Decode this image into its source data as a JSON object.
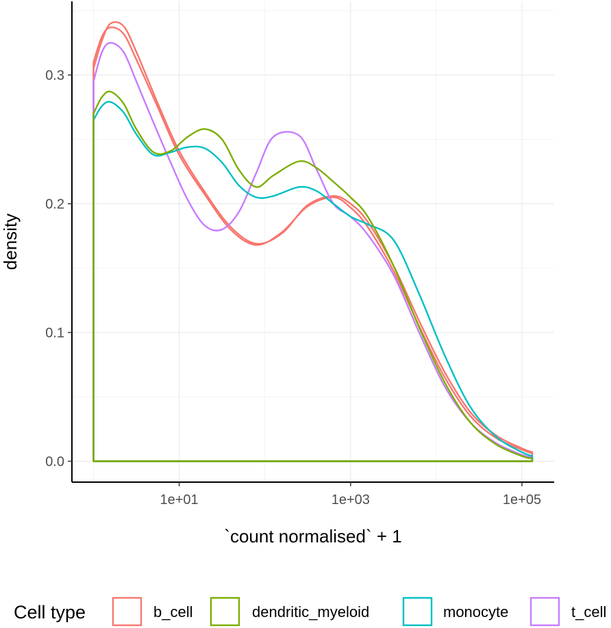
{
  "chart_data": {
    "type": "line",
    "subtype": "density",
    "xlabel": "`count normalised` + 1",
    "ylabel": "density",
    "x_scale": "log10",
    "xlim_log10": [
      -0.15,
      5.35
    ],
    "ylim": [
      -0.017,
      0.357
    ],
    "x_ticks": [
      {
        "value_log10": 1,
        "label": "1e+01"
      },
      {
        "value_log10": 3,
        "label": "1e+03"
      },
      {
        "value_log10": 5,
        "label": "1e+05"
      }
    ],
    "y_ticks": [
      {
        "value": 0.0,
        "label": "0.0"
      },
      {
        "value": 0.1,
        "label": "0.1"
      },
      {
        "value": 0.2,
        "label": "0.2"
      },
      {
        "value": 0.3,
        "label": "0.3"
      }
    ],
    "grid": true,
    "legend": {
      "title": "Cell type",
      "position": "bottom"
    },
    "series": [
      {
        "name": "b_cell",
        "color": "#F8766D",
        "x_log10": [
          0,
          0.1,
          0.2,
          0.35,
          0.5,
          0.75,
          1.0,
          1.3,
          1.6,
          1.9,
          2.2,
          2.5,
          2.8,
          3.0,
          3.2,
          3.5,
          3.8,
          4.1,
          4.4,
          4.7,
          5.0,
          5.12
        ],
        "y": [
          0.31,
          0.33,
          0.337,
          0.332,
          0.312,
          0.275,
          0.238,
          0.207,
          0.18,
          0.168,
          0.178,
          0.198,
          0.205,
          0.197,
          0.182,
          0.148,
          0.105,
          0.065,
          0.035,
          0.018,
          0.009,
          0.006
        ]
      },
      {
        "name": "b_cell",
        "color": "#F8766D",
        "x_log10": [
          0,
          0.1,
          0.2,
          0.35,
          0.5,
          0.75,
          1.0,
          1.3,
          1.6,
          1.9,
          2.2,
          2.5,
          2.8,
          3.0,
          3.2,
          3.5,
          3.8,
          4.1,
          4.4,
          4.7,
          5.0,
          5.12
        ],
        "y": [
          0.305,
          0.327,
          0.34,
          0.338,
          0.318,
          0.278,
          0.241,
          0.209,
          0.182,
          0.169,
          0.177,
          0.199,
          0.206,
          0.2,
          0.186,
          0.152,
          0.109,
          0.069,
          0.038,
          0.02,
          0.01,
          0.007
        ]
      },
      {
        "name": "dendritic_myeloid",
        "color": "#7CAE00",
        "x_log10": [
          0,
          0.1,
          0.2,
          0.35,
          0.5,
          0.7,
          0.9,
          1.1,
          1.3,
          1.5,
          1.7,
          1.9,
          2.1,
          2.4,
          2.6,
          2.8,
          3.0,
          3.2,
          3.5,
          3.8,
          4.1,
          4.4,
          4.7,
          5.0,
          5.12
        ],
        "y": [
          0.27,
          0.283,
          0.287,
          0.278,
          0.258,
          0.24,
          0.241,
          0.252,
          0.258,
          0.25,
          0.226,
          0.213,
          0.222,
          0.233,
          0.228,
          0.217,
          0.205,
          0.19,
          0.152,
          0.104,
          0.061,
          0.03,
          0.013,
          0.004,
          0.002
        ]
      },
      {
        "name": "monocyte",
        "color": "#00BFC4",
        "x_log10": [
          0,
          0.1,
          0.2,
          0.35,
          0.5,
          0.7,
          0.9,
          1.1,
          1.3,
          1.5,
          1.7,
          1.9,
          2.1,
          2.4,
          2.6,
          2.8,
          3.0,
          3.2,
          3.5,
          3.8,
          4.1,
          4.4,
          4.7,
          5.0,
          5.12
        ],
        "y": [
          0.265,
          0.276,
          0.279,
          0.271,
          0.254,
          0.238,
          0.24,
          0.244,
          0.243,
          0.232,
          0.214,
          0.205,
          0.206,
          0.213,
          0.21,
          0.2,
          0.19,
          0.184,
          0.172,
          0.13,
          0.082,
          0.042,
          0.019,
          0.007,
          0.004
        ]
      },
      {
        "name": "t_cell",
        "color": "#C77CFF",
        "x_log10": [
          0,
          0.1,
          0.2,
          0.35,
          0.5,
          0.7,
          0.9,
          1.1,
          1.3,
          1.5,
          1.7,
          1.9,
          2.1,
          2.4,
          2.6,
          2.8,
          3.0,
          3.2,
          3.5,
          3.8,
          4.1,
          4.4,
          4.7,
          5.0,
          5.12
        ],
        "y": [
          0.295,
          0.318,
          0.325,
          0.318,
          0.295,
          0.263,
          0.232,
          0.203,
          0.183,
          0.18,
          0.194,
          0.224,
          0.252,
          0.253,
          0.227,
          0.2,
          0.19,
          0.176,
          0.145,
          0.1,
          0.058,
          0.03,
          0.014,
          0.005,
          0.003
        ]
      }
    ]
  }
}
